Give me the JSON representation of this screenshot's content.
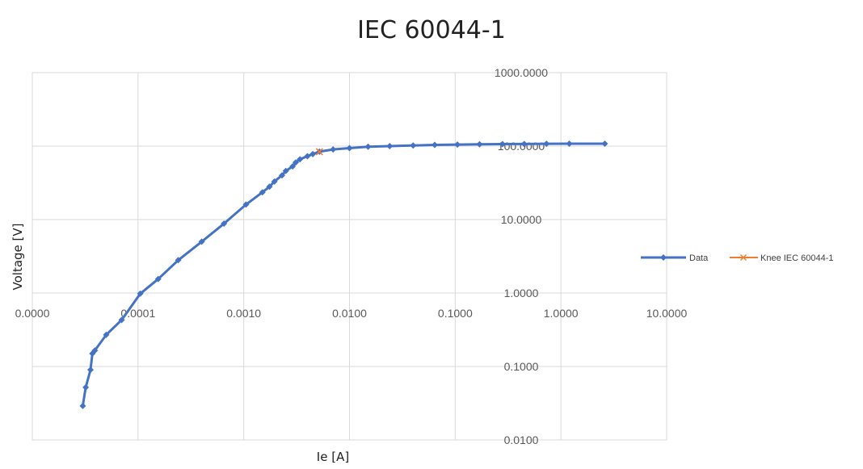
{
  "chart_data": {
    "type": "scatter",
    "title": "IEC 60044-1",
    "xlabel": "Ie [A]",
    "ylabel": "Voltage [V]",
    "x_scale": "log",
    "y_scale": "log",
    "xlim": [
      1e-05,
      10
    ],
    "ylim": [
      0.01,
      1000
    ],
    "x_tick_labels": [
      "0.0000",
      "0.0001",
      "0.0010",
      "0.0100",
      "0.1000",
      "1.0000",
      "10.0000"
    ],
    "y_tick_labels": [
      "0.0100",
      "0.1000",
      "1.0000",
      "10.0000",
      "100.0000",
      "1000.0000"
    ],
    "grid": true,
    "legend_position": "right",
    "series": [
      {
        "name": "Data",
        "color": "#4472C4",
        "marker": "diamond",
        "points": [
          [
            3e-05,
            0.029
          ],
          [
            3.2e-05,
            0.052
          ],
          [
            3.55e-05,
            0.09
          ],
          [
            3.7e-05,
            0.15
          ],
          [
            3.9e-05,
            0.165
          ],
          [
            5e-05,
            0.27
          ],
          [
            7e-05,
            0.43
          ],
          [
            0.000105,
            0.98
          ],
          [
            0.000155,
            1.55
          ],
          [
            0.00024,
            2.8
          ],
          [
            0.0004,
            5.0
          ],
          [
            0.00065,
            8.8
          ],
          [
            0.00105,
            16.0
          ],
          [
            0.0015,
            23.5
          ],
          [
            0.00175,
            28.0
          ],
          [
            0.00195,
            33.0
          ],
          [
            0.0023,
            40.0
          ],
          [
            0.0025,
            46.0
          ],
          [
            0.0029,
            53.0
          ],
          [
            0.0031,
            60.0
          ],
          [
            0.0034,
            66.0
          ],
          [
            0.004,
            73.0
          ],
          [
            0.0045,
            78.0
          ],
          [
            0.0052,
            84.0
          ],
          [
            0.007,
            90.0
          ],
          [
            0.01,
            94.0
          ],
          [
            0.015,
            98.0
          ],
          [
            0.024,
            100.0
          ],
          [
            0.04,
            102.0
          ],
          [
            0.064,
            104.0
          ],
          [
            0.105,
            105.0
          ],
          [
            0.17,
            106.0
          ],
          [
            0.28,
            106.5
          ],
          [
            0.45,
            107.0
          ],
          [
            0.73,
            107.5
          ],
          [
            1.2,
            108.0
          ],
          [
            2.6,
            108.0
          ]
        ]
      },
      {
        "name": "Knee IEC 60044-1",
        "color": "#ED7D31",
        "marker": "x",
        "points": [
          [
            0.0052,
            84.0
          ]
        ]
      }
    ]
  }
}
